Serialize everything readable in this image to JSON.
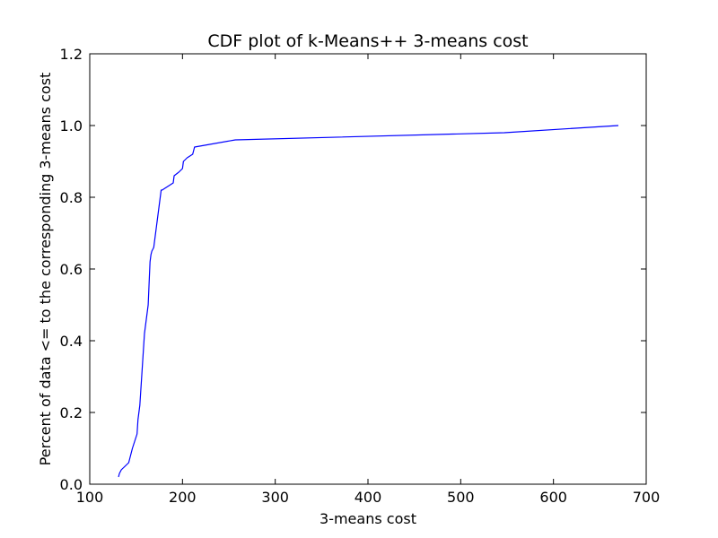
{
  "chart_data": {
    "type": "line",
    "title": "CDF plot of k-Means++ 3-means cost",
    "xlabel": "3-means cost",
    "ylabel": "Percent of data <= to the corresponding 3-means cost",
    "xlim": [
      100,
      700
    ],
    "ylim": [
      0.0,
      1.2
    ],
    "xticks": [
      100,
      200,
      300,
      400,
      500,
      600,
      700
    ],
    "xtick_labels": [
      "100",
      "200",
      "300",
      "400",
      "500",
      "600",
      "700"
    ],
    "yticks": [
      0.0,
      0.2,
      0.4,
      0.6,
      0.8,
      1.0,
      1.2
    ],
    "ytick_labels": [
      "0.0",
      "0.2",
      "0.4",
      "0.6",
      "0.8",
      "1.0",
      "1.2"
    ],
    "grid": false,
    "legend": "none",
    "series": [
      {
        "color": "#0000ff",
        "x": [
          131,
          132,
          134,
          142,
          144,
          146,
          151,
          152,
          154,
          155,
          156,
          157,
          158,
          159,
          160,
          161,
          162,
          163,
          164,
          165,
          166,
          167,
          169,
          170,
          171,
          172,
          173,
          174,
          175,
          176,
          177,
          178,
          190,
          191,
          196,
          200,
          201,
          205,
          211,
          213,
          257,
          547,
          670
        ],
        "y": [
          0.02,
          0.03,
          0.04,
          0.06,
          0.08,
          0.1,
          0.14,
          0.18,
          0.22,
          0.26,
          0.3,
          0.34,
          0.38,
          0.42,
          0.44,
          0.46,
          0.48,
          0.5,
          0.56,
          0.62,
          0.64,
          0.65,
          0.66,
          0.68,
          0.7,
          0.72,
          0.74,
          0.76,
          0.78,
          0.8,
          0.82,
          0.82,
          0.84,
          0.86,
          0.87,
          0.88,
          0.9,
          0.91,
          0.92,
          0.94,
          0.96,
          0.98,
          1.0
        ]
      }
    ]
  }
}
